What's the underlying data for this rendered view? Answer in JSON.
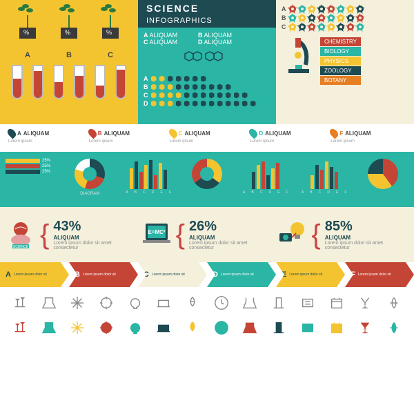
{
  "title": {
    "main": "SCIENCE",
    "sub": "INFOGRAPHICS"
  },
  "colors": {
    "teal": "#2ab5a5",
    "darkTeal": "#1e4a52",
    "yellow": "#f4c430",
    "cream": "#f4f0dc",
    "red": "#c44536",
    "orange": "#e67e22",
    "dark": "#3a3a3a",
    "green": "#2a7a3f"
  },
  "plants": {
    "labels": [
      "A",
      "B",
      "C"
    ],
    "tubes": [
      {
        "fill": 60,
        "color": "#c44536"
      },
      {
        "fill": 85,
        "color": "#c44536"
      },
      {
        "fill": 50,
        "color": "#c44536"
      },
      {
        "fill": 70,
        "color": "#c44536"
      },
      {
        "fill": 40,
        "color": "#c44536"
      },
      {
        "fill": 90,
        "color": "#c44536"
      }
    ]
  },
  "hexLegend": [
    {
      "l": "A",
      "t": "ALIQUAM"
    },
    {
      "l": "C",
      "t": "ALIQUAM"
    },
    {
      "l": "B",
      "t": "ALIQUAM"
    },
    {
      "l": "D",
      "t": "ALIQUAM"
    }
  ],
  "hexRows": [
    {
      "l": "A",
      "y": 2,
      "d": 5
    },
    {
      "l": "B",
      "y": 3,
      "d": 7
    },
    {
      "l": "C",
      "y": 4,
      "d": 8
    },
    {
      "l": "D",
      "y": 3,
      "d": 10
    }
  ],
  "gearRows": [
    {
      "l": "A",
      "colors": [
        "#c44536",
        "#2ab5a5",
        "#f4c430",
        "#1e4a52",
        "#c44536",
        "#2ab5a5",
        "#f4c430",
        "#1e4a52"
      ]
    },
    {
      "l": "B",
      "colors": [
        "#2ab5a5",
        "#f4c430",
        "#1e4a52",
        "#c44536",
        "#2ab5a5",
        "#f4c430",
        "#1e4a52",
        "#c44536"
      ]
    },
    {
      "l": "C",
      "colors": [
        "#f4c430",
        "#1e4a52",
        "#c44536",
        "#2ab5a5",
        "#f4c430",
        "#1e4a52",
        "#c44536",
        "#2ab5a5"
      ]
    }
  ],
  "sciences": [
    {
      "t": "CHEMISTRY",
      "c": "#c44536"
    },
    {
      "t": "BIOLOGY",
      "c": "#2ab5a5"
    },
    {
      "t": "PHYSICS",
      "c": "#f4c430"
    },
    {
      "t": "ZOOLOGY",
      "c": "#1e4a52"
    },
    {
      "t": "BOTANY",
      "c": "#e67e22"
    }
  ],
  "markers": [
    {
      "l": "A",
      "t": "ALIQUAM",
      "s": "Lorem ipsum",
      "c": "#1e4a52"
    },
    {
      "l": "B",
      "t": "ALIQUAM",
      "s": "Lorem ipsum",
      "c": "#c44536"
    },
    {
      "l": "C",
      "t": "ALIQUAM",
      "s": "Lorem ipsum",
      "c": "#f4c430"
    },
    {
      "l": "D",
      "t": "ALIQUAM",
      "s": "Lorem ipsum",
      "c": "#2ab5a5"
    },
    {
      "l": "F",
      "t": "ALIQUAM",
      "s": "Lorem ipsum",
      "c": "#e67e22"
    }
  ],
  "charts": {
    "hbars": [
      {
        "v": 25,
        "c": "#f4c430"
      },
      {
        "v": 25,
        "c": "#c44536"
      },
      {
        "v": 25,
        "c": "#1e4a52"
      }
    ],
    "donut1": {
      "segs": [
        {
          "v": 30,
          "c": "#1e4a52"
        },
        {
          "v": 25,
          "c": "#c44536"
        },
        {
          "v": 25,
          "c": "#f4c430"
        },
        {
          "v": 20,
          "c": "#fff"
        }
      ]
    },
    "bars1": [
      {
        "v": 30,
        "c": "#f4c430"
      },
      {
        "v": 40,
        "c": "#1e4a52"
      },
      {
        "v": 25,
        "c": "#c44536"
      },
      {
        "v": 35,
        "c": "#f4c430"
      },
      {
        "v": 42,
        "c": "#1e4a52"
      },
      {
        "v": 20,
        "c": "#c44536"
      },
      {
        "v": 38,
        "c": "#f4c430"
      },
      {
        "v": 28,
        "c": "#1e4a52"
      }
    ],
    "donut2": {
      "segs": [
        {
          "v": 35,
          "c": "#f4c430"
        },
        {
          "v": 30,
          "c": "#1e4a52"
        },
        {
          "v": 35,
          "c": "#c44536"
        }
      ]
    },
    "bars2": [
      {
        "v": 25,
        "c": "#1e4a52"
      },
      {
        "v": 35,
        "c": "#f4c430"
      },
      {
        "v": 40,
        "c": "#c44536"
      },
      {
        "v": 20,
        "c": "#1e4a52"
      },
      {
        "v": 30,
        "c": "#f4c430"
      },
      {
        "v": 38,
        "c": "#c44536"
      }
    ],
    "bars3": [
      {
        "v": 20,
        "c": "#f4c430"
      },
      {
        "v": 35,
        "c": "#1e4a52"
      },
      {
        "v": 28,
        "c": "#c44536"
      },
      {
        "v": 40,
        "c": "#f4c430"
      },
      {
        "v": 32,
        "c": "#1e4a52"
      },
      {
        "v": 25,
        "c": "#c44536"
      }
    ],
    "pie": {
      "segs": [
        {
          "v": 40,
          "c": "#c44536"
        },
        {
          "v": 35,
          "c": "#f4c430"
        },
        {
          "v": 25,
          "c": "#1e4a52"
        }
      ]
    },
    "labels": [
      "A",
      "B",
      "C",
      "D",
      "E",
      "F"
    ],
    "diagram": "DIAGRAM"
  },
  "stats": [
    {
      "pct": "43%",
      "t": "ALIQUAM",
      "s": "Lorem ipsum dolor sit amet consectetur"
    },
    {
      "pct": "26%",
      "t": "ALIQUAM",
      "s": "Lorem ipsum dolor sit amet consectetur",
      "formula": "E=MC²"
    },
    {
      "pct": "85%",
      "t": "ALIQUAM",
      "s": "Lorem ipsum dolor sit amet consectetur"
    }
  ],
  "arrows": [
    {
      "l": "A",
      "t": "Lorem ipsum dolor sit",
      "c": "#f4c430",
      "tc": "#1e4a52"
    },
    {
      "l": "B",
      "t": "Lorem ipsum dolor sit",
      "c": "#c44536",
      "tc": "#fff"
    },
    {
      "l": "C",
      "t": "Lorem ipsum dolor sit",
      "c": "#f4f0dc",
      "tc": "#1e4a52"
    },
    {
      "l": "D",
      "t": "Lorem ipsum dolor sit",
      "c": "#2ab5a5",
      "tc": "#fff"
    },
    {
      "l": "E",
      "t": "Lorem ipsum dolor sit",
      "c": "#f4c430",
      "tc": "#1e4a52"
    },
    {
      "l": "F",
      "t": "Lorem ipsum dolor sit",
      "c": "#c44536",
      "tc": "#fff"
    }
  ],
  "icons": {
    "row1_colors": [
      "#888",
      "#888",
      "#888",
      "#888",
      "#888",
      "#888",
      "#888",
      "#888",
      "#888",
      "#888",
      "#888",
      "#888",
      "#888",
      "#888"
    ],
    "row2_colors": [
      "#c44536",
      "#2ab5a5",
      "#f4c430",
      "#c44536",
      "#2ab5a5",
      "#1e4a52",
      "#f4c430",
      "#2ab5a5",
      "#c44536",
      "#1e4a52",
      "#2ab5a5",
      "#f4c430",
      "#c44536",
      "#2ab5a5"
    ]
  }
}
